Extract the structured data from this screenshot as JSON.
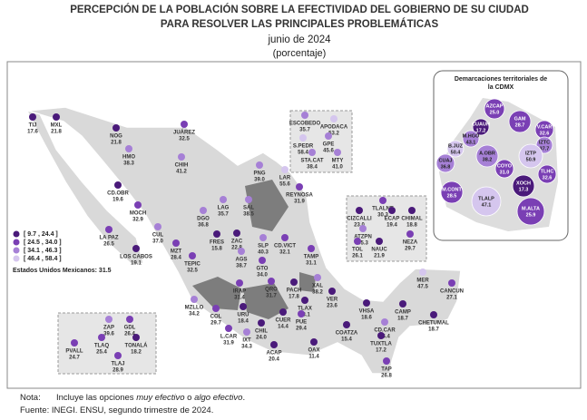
{
  "title_line1": "PERCEPCIÓN DE LA POBLACIÓN SOBRE LA EFECTIVIDAD DEL GOBIERNO DE SU CIUDAD",
  "title_line2": "PARA RESOLVER LAS PRINCIPALES PROBLEMÁTICAS",
  "subtitle": "junio de 2024",
  "unit": "(porcentaje)",
  "legend": {
    "classes": [
      {
        "label": "[ 9.7 , 24.4 ]",
        "min": 9.7,
        "max": 24.4,
        "color": "#4a1a7a"
      },
      {
        "label": "[ 24.5 , 34.0 ]",
        "min": 24.5,
        "max": 34,
        "color": "#7a3fb4"
      },
      {
        "label": "[ 34.1 , 46.3 ]",
        "min": 34.1,
        "max": 46.3,
        "color": "#a680d6"
      },
      {
        "label": "[ 46.4 , 58.4 ]",
        "min": 46.4,
        "max": 58.4,
        "color": "#d5c6ee"
      }
    ],
    "national_label": "Estados Unidos Mexicanos:",
    "national_value": 31.5
  },
  "cities": [
    {
      "label": "TIJ",
      "value": 17.6
    },
    {
      "label": "MXL",
      "value": 21.8
    },
    {
      "label": "NOG",
      "value": 21.8
    },
    {
      "label": "JUÁREZ",
      "value": 32.5
    },
    {
      "label": "HMO",
      "value": 38.3
    },
    {
      "label": "CHIH",
      "value": 41.2
    },
    {
      "label": "CD.OBR",
      "value": 19.6
    },
    {
      "label": "MOCH",
      "value": 32.9
    },
    {
      "label": "LA PAZ",
      "value": 26.5
    },
    {
      "label": "LOS CABOS",
      "value": 19.1
    },
    {
      "label": "CUL",
      "value": 37,
      "value_label": "37.0"
    },
    {
      "label": "MZT",
      "value": 28.4
    },
    {
      "label": "DGO",
      "value": 36.8
    },
    {
      "label": "LAG",
      "value": 35.7
    },
    {
      "label": "SAL",
      "value": 38.5
    },
    {
      "label": "PNG",
      "value": 39,
      "value_label": "39.0"
    },
    {
      "label": "LAR",
      "value": 55.6
    },
    {
      "label": "REYNOSA",
      "value": 31.9
    },
    {
      "label": "FRES",
      "value": 15.8
    },
    {
      "label": "ZAC",
      "value": 22.8
    },
    {
      "label": "TEPIC",
      "value": 32.5
    },
    {
      "label": "AGS",
      "value": 38.7
    },
    {
      "label": "SLP",
      "value": 40.3
    },
    {
      "label": "CD.VICT",
      "value": 32.1
    },
    {
      "label": "TAMP",
      "value": 31.1
    },
    {
      "label": "GTO",
      "value": 34,
      "value_label": "34.0"
    },
    {
      "label": "QRO",
      "value": 31.7
    },
    {
      "label": "IRAP",
      "value": 31.4
    },
    {
      "label": "MZLLO",
      "value": 34.2
    },
    {
      "label": "COL",
      "value": 29.7
    },
    {
      "label": "URU",
      "value": 18.4
    },
    {
      "label": "PACH",
      "value": 17.8
    },
    {
      "label": "XAL",
      "value": 38.2
    },
    {
      "label": "TLAX",
      "value": 23.1
    },
    {
      "label": "VER",
      "value": 23.6
    },
    {
      "label": "L.CAR",
      "value": 31.9
    },
    {
      "label": "IXT",
      "value": 34.3
    },
    {
      "label": "CHIL",
      "value": 24,
      "value_label": "24.0"
    },
    {
      "label": "CUER",
      "value": 14.4
    },
    {
      "label": "PUE",
      "value": 29.4
    },
    {
      "label": "VHSA",
      "value": 18.6
    },
    {
      "label": "CAMP",
      "value": 18.7
    },
    {
      "label": "CD.CAR",
      "value": 36.4
    },
    {
      "label": "MER",
      "value": 47.5
    },
    {
      "label": "CANCUN",
      "value": 27.1
    },
    {
      "label": "CHETUMAL",
      "value": 18.7
    },
    {
      "label": "ACAP",
      "value": 20.4
    },
    {
      "label": "OAX",
      "value": 11.4
    },
    {
      "label": "COATZA",
      "value": 15.4
    },
    {
      "label": "TUXTLA",
      "value": 17.2
    },
    {
      "label": "TAP",
      "value": 26.8
    },
    {
      "label": "ESCOBEDO",
      "value": 35.7
    },
    {
      "label": "APODACA",
      "value": 53.2
    },
    {
      "label": "S.PEDR",
      "value": 58.4
    },
    {
      "label": "GPE",
      "value": 45.6
    },
    {
      "label": "STA.CAT",
      "value": 38.4
    },
    {
      "label": "MTY",
      "value": 41,
      "value_label": "41.0"
    },
    {
      "label": "TLALNE",
      "value": 30.3
    },
    {
      "label": "CIZCALLI",
      "value": 23,
      "value_label": "23.0"
    },
    {
      "label": "ECAP",
      "value": 19.4
    },
    {
      "label": "CHIMAL",
      "value": 18.8
    },
    {
      "label": "ATZPN",
      "value": 35.3
    },
    {
      "label": "TOL",
      "value": 26.1
    },
    {
      "label": "NAUC",
      "value": 21.9
    },
    {
      "label": "NEZA",
      "value": 29.7
    },
    {
      "label": "ZAP",
      "value": 39.6
    },
    {
      "label": "GDL",
      "value": 26.4
    },
    {
      "label": "TLAQ",
      "value": 25.4
    },
    {
      "label": "TONALÁ",
      "value": 18.2
    },
    {
      "label": "PVALL",
      "value": 24.7
    },
    {
      "label": "TLAJ",
      "value": 28.9
    }
  ],
  "cdmx": {
    "title_line1": "Demarcaciones territoriales de",
    "title_line2": "la CDMX",
    "delegations": [
      {
        "label": "AZCAP",
        "value": 25,
        "value_label": "25.0"
      },
      {
        "label": "GAM",
        "value": 28.7
      },
      {
        "label": "CUAUH",
        "value": 17.2
      },
      {
        "label": "V.CAR",
        "value": 32.6
      },
      {
        "label": "M.HGO",
        "value": 43.1
      },
      {
        "label": "IZTC",
        "value": 37.7
      },
      {
        "label": "B.JUZ",
        "value": 50.4
      },
      {
        "label": "CUAJ",
        "value": 36.8
      },
      {
        "label": "A.OBR",
        "value": 38.2
      },
      {
        "label": "IZTP",
        "value": 50.9
      },
      {
        "label": "COYO",
        "value": 31,
        "value_label": "31.0"
      },
      {
        "label": "TLHC",
        "value": 32.6
      },
      {
        "label": "XOCH",
        "value": 17.3
      },
      {
        "label": "M.CONT",
        "value": 28.5
      },
      {
        "label": "TLALP",
        "value": 47.1
      },
      {
        "label": "M.ALTA",
        "value": 25.9
      }
    ]
  },
  "note": {
    "label": "Nota:",
    "before": "Incluye las opciones ",
    "em1": "muy efectivo",
    "mid": " o ",
    "em2": "algo efectivo",
    "after": "."
  },
  "source": {
    "label": "Fuente:",
    "text": "INEGI. ENSU, segundo trimestre de 2024."
  }
}
